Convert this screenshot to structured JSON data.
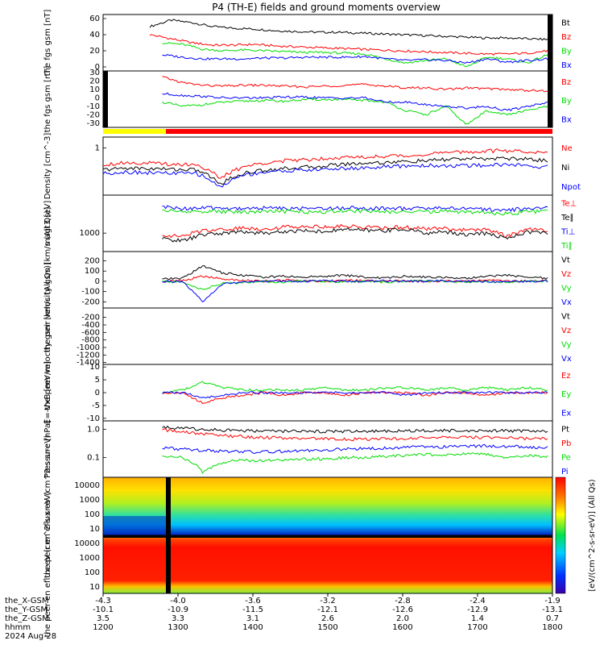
{
  "title": "P4 (TH-E) fields and ground moments overview",
  "colors": {
    "black": "#000000",
    "red": "#ff0000",
    "green": "#00dd00",
    "blue": "#0000ff",
    "yellow": "#ffff00"
  },
  "footer": {
    "rows": [
      {
        "label": "the_X-GSM",
        "values": [
          "-4.3",
          "-4.0",
          "-3.6",
          "-3.2",
          "-2.8",
          "-2.4",
          "-1.9"
        ]
      },
      {
        "label": "the_Y-GSM",
        "values": [
          "-10.1",
          "-10.9",
          "-11.5",
          "-12.1",
          "-12.6",
          "-12.9",
          "-13.1"
        ]
      },
      {
        "label": "the_Z-GSM",
        "values": [
          "3.5",
          "3.3",
          "3.1",
          "2.6",
          "2.0",
          "1.4",
          "0.7"
        ]
      },
      {
        "label": "hhmm",
        "values": [
          "1200",
          "1300",
          "1400",
          "1500",
          "1600",
          "1700",
          "1800"
        ]
      }
    ],
    "date": "2024 Aug 28"
  },
  "colorbar": {
    "label": "[eV/(cm^2-s-sr-eV)] (All Qs)",
    "ticks": [
      "10^8",
      "10^6",
      "10^4",
      "10^2",
      "10^8",
      "10^6",
      "10^4",
      "10^2"
    ]
  },
  "chart_data": [
    {
      "id": "fgs1",
      "type": "line",
      "ylabel": "the fgs gsm [nT]",
      "ylim": [
        -5,
        65
      ],
      "yticks": [
        "60",
        "40",
        "20",
        "0"
      ],
      "series": [
        {
          "name": "Bt",
          "color": "black",
          "data_start": 0.83,
          "values": [
            50,
            58,
            55,
            50,
            48,
            47,
            45,
            44,
            43,
            43,
            42,
            41,
            40,
            39,
            38,
            37,
            36,
            36,
            35,
            34
          ]
        },
        {
          "name": "Bz",
          "color": "red",
          "data_start": 0.83,
          "values": [
            40,
            35,
            30,
            27,
            27,
            28,
            26,
            25,
            24,
            23,
            22,
            21,
            20,
            19,
            18,
            17,
            16,
            16,
            17,
            20
          ]
        },
        {
          "name": "By",
          "color": "green",
          "data_start": 1.05,
          "values": [
            30,
            28,
            22,
            20,
            21,
            20,
            19,
            18,
            18,
            17,
            16,
            10,
            5,
            8,
            10,
            0,
            12,
            10,
            5,
            15
          ]
        },
        {
          "name": "Bx",
          "color": "blue",
          "data_start": 1.05,
          "values": [
            15,
            12,
            10,
            10,
            10,
            11,
            11,
            12,
            12,
            12,
            13,
            10,
            8,
            9,
            8,
            5,
            10,
            6,
            8,
            10
          ]
        }
      ]
    },
    {
      "id": "fgs2",
      "type": "line",
      "ylabel": "the fgs gsm [nT]",
      "ylim": [
        -35,
        32
      ],
      "yticks": [
        "30",
        "20",
        "10",
        "0",
        "-10",
        "-20",
        "-30"
      ],
      "series": [
        {
          "name": "Bz",
          "color": "red",
          "data_start": 1.05,
          "values": [
            25,
            18,
            15,
            14,
            15,
            15,
            14,
            13,
            14,
            15,
            16,
            14,
            12,
            12,
            10,
            12,
            11,
            10,
            9,
            8
          ]
        },
        {
          "name": "By",
          "color": "green",
          "data_start": 1.05,
          "values": [
            -5,
            -10,
            -8,
            -5,
            -4,
            -3,
            -4,
            -2,
            -2,
            -2,
            -3,
            -5,
            -15,
            -20,
            -10,
            -32,
            -15,
            -20,
            -15,
            -10
          ]
        },
        {
          "name": "Bx",
          "color": "blue",
          "data_start": 1.05,
          "values": [
            5,
            3,
            2,
            0,
            0,
            0,
            1,
            1,
            0,
            0,
            0,
            -5,
            -5,
            -8,
            -10,
            -12,
            -10,
            -15,
            -10,
            -5
          ]
        }
      ]
    },
    {
      "id": "density",
      "type": "line",
      "ylabel": "Density [cm^-3]",
      "ylim": [
        0.05,
        2
      ],
      "yticks": [
        "1"
      ],
      "series": [
        {
          "name": "Ne",
          "color": "red",
          "data_start": 0.0,
          "values": [
            0.35,
            0.4,
            0.38,
            0.36,
            0.35,
            0.14,
            0.3,
            0.4,
            0.45,
            0.5,
            0.55,
            0.55,
            0.6,
            0.6,
            0.7,
            0.75,
            0.8,
            0.85,
            0.8,
            0.75
          ]
        },
        {
          "name": "Ni",
          "color": "black",
          "data_start": 0.0,
          "values": [
            0.25,
            0.28,
            0.27,
            0.26,
            0.25,
            0.1,
            0.2,
            0.25,
            0.28,
            0.3,
            0.35,
            0.38,
            0.4,
            0.42,
            0.45,
            0.5,
            0.5,
            0.52,
            0.5,
            0.45
          ]
        },
        {
          "name": "Npot",
          "color": "blue",
          "data_start": 0.0,
          "values": [
            0.2,
            0.22,
            0.21,
            0.2,
            0.2,
            0.08,
            0.18,
            0.22,
            0.24,
            0.25,
            0.27,
            0.28,
            0.3,
            0.32,
            0.33,
            0.32,
            0.33,
            0.35,
            0.33,
            0.3
          ]
        }
      ]
    },
    {
      "id": "temp",
      "type": "line",
      "ylabel": "magt3 [eV]",
      "ylim": [
        300,
        12000
      ],
      "yticks": [
        "1000"
      ],
      "series": [
        {
          "name": "Te⊥",
          "color": "red",
          "data_start": 1.05,
          "values": [
            900,
            800,
            1200,
            1300,
            1400,
            1300,
            1500,
            1600,
            1500,
            1600,
            1500,
            1400,
            1500,
            1300,
            1400,
            1200,
            1300,
            800,
            1300,
            1200
          ]
        },
        {
          "name": "Te∥",
          "color": "black",
          "data_start": 1.05,
          "values": [
            700,
            600,
            900,
            1000,
            1100,
            1000,
            1100,
            1200,
            1100,
            1300,
            1200,
            1200,
            1300,
            1000,
            1100,
            900,
            1000,
            700,
            1100,
            1000
          ]
        },
        {
          "name": "Ti⊥",
          "color": "blue",
          "data_start": 1.05,
          "values": [
            5500,
            5000,
            5200,
            5100,
            5000,
            5200,
            5100,
            5000,
            5100,
            5300,
            5200,
            5100,
            5000,
            5100,
            5200,
            5000,
            4800,
            4500,
            5000,
            5200
          ]
        },
        {
          "name": "Ti∥",
          "color": "green",
          "data_start": 1.05,
          "values": [
            4500,
            4000,
            4200,
            4100,
            4000,
            4200,
            4100,
            4000,
            4100,
            4300,
            4200,
            4100,
            4000,
            4100,
            4200,
            4000,
            3800,
            3600,
            4000,
            4200
          ]
        }
      ]
    },
    {
      "id": "pvel",
      "type": "line",
      "ylabel": "the peir velocity gsm [km/s (All Qs)]",
      "ylim": [
        -260,
        290
      ],
      "yticks": [
        "200",
        "100",
        "0",
        "-100",
        "-200"
      ],
      "series": [
        {
          "name": "Vt",
          "color": "black",
          "data_start": 1.05,
          "values": [
            20,
            30,
            150,
            80,
            60,
            40,
            50,
            40,
            50,
            60,
            40,
            30,
            50,
            40,
            40,
            30,
            50,
            60,
            40,
            30
          ]
        },
        {
          "name": "Vz",
          "color": "red",
          "data_start": 1.05,
          "values": [
            0,
            5,
            50,
            20,
            10,
            0,
            10,
            5,
            0,
            10,
            5,
            0,
            5,
            0,
            5,
            0,
            10,
            5,
            0,
            5
          ]
        },
        {
          "name": "Vy",
          "color": "green",
          "data_start": 1.05,
          "values": [
            0,
            -10,
            -80,
            -20,
            -10,
            0,
            -10,
            5,
            0,
            -5,
            0,
            -10,
            0,
            5,
            0,
            -5,
            0,
            -10,
            0,
            5
          ]
        },
        {
          "name": "Vx",
          "color": "blue",
          "data_start": 1.05,
          "values": [
            0,
            -5,
            -200,
            -20,
            -10,
            0,
            5,
            0,
            5,
            0,
            0,
            5,
            0,
            0,
            5,
            0,
            -5,
            0,
            0,
            0
          ]
        }
      ]
    },
    {
      "id": "evel",
      "type": "line",
      "ylabel": "the peer velocity gsm [km/s (All Qs)]",
      "ylim": [
        -1450,
        50
      ],
      "yticks": [
        "-200",
        "-400",
        "-600",
        "-800",
        "-1000",
        "-1200",
        "-1400"
      ],
      "series": [
        {
          "name": "Vt",
          "color": "black",
          "values": []
        },
        {
          "name": "Vz",
          "color": "red",
          "values": []
        },
        {
          "name": "Vy",
          "color": "green",
          "values": []
        },
        {
          "name": "Vx",
          "color": "blue",
          "values": []
        }
      ]
    },
    {
      "id": "efield",
      "type": "line",
      "ylabel": "E=-VxB [mV/m]",
      "ylim": [
        -11,
        11
      ],
      "yticks": [
        "10",
        "5",
        "0",
        "-5",
        "-10"
      ],
      "series": [
        {
          "name": "Ez",
          "color": "red",
          "data_start": 1.05,
          "values": [
            0,
            0,
            -4,
            -2,
            -1,
            0,
            -1,
            0,
            0,
            -1,
            0,
            0,
            0,
            -1,
            0,
            0,
            -1,
            0,
            0,
            0
          ]
        },
        {
          "name": "Ey",
          "color": "green",
          "data_start": 1.05,
          "values": [
            0,
            1,
            4,
            2,
            1,
            1,
            1,
            1,
            2,
            1,
            1,
            2,
            2,
            1,
            2,
            1,
            2,
            1,
            2,
            1
          ]
        },
        {
          "name": "Ex",
          "color": "blue",
          "data_start": 1.05,
          "values": [
            0,
            0,
            -2,
            -1,
            0,
            0,
            0,
            0,
            0,
            0,
            0,
            0,
            -1,
            0,
            0,
            0,
            0,
            0,
            0,
            0
          ]
        }
      ]
    },
    {
      "id": "pressure",
      "type": "line",
      "ylabel": "Pressure [nPa]",
      "ylim": [
        0.02,
        2
      ],
      "yticks": [
        "1.0",
        "0.1"
      ],
      "series": [
        {
          "name": "Pt",
          "color": "black",
          "data_start": 1.05,
          "values": [
            1.2,
            1.1,
            1.0,
            0.95,
            0.9,
            0.88,
            0.86,
            0.85,
            0.85,
            0.85,
            0.84,
            0.86,
            0.88,
            0.9,
            0.9,
            0.92,
            0.9,
            0.88,
            0.86,
            0.85
          ]
        },
        {
          "name": "Pb",
          "color": "red",
          "data_start": 1.05,
          "values": [
            0.95,
            0.8,
            0.7,
            0.6,
            0.55,
            0.52,
            0.5,
            0.48,
            0.46,
            0.45,
            0.45,
            0.46,
            0.47,
            0.5,
            0.52,
            0.55,
            0.52,
            0.5,
            0.48,
            0.47
          ]
        },
        {
          "name": "Pe",
          "color": "green",
          "data_start": 1.05,
          "values": [
            0.12,
            0.1,
            0.03,
            0.07,
            0.08,
            0.08,
            0.08,
            0.09,
            0.09,
            0.1,
            0.1,
            0.11,
            0.12,
            0.13,
            0.12,
            0.14,
            0.13,
            0.1,
            0.12,
            0.11
          ]
        },
        {
          "name": "Pi",
          "color": "blue",
          "data_start": 1.05,
          "values": [
            0.22,
            0.2,
            0.18,
            0.17,
            0.16,
            0.16,
            0.17,
            0.18,
            0.19,
            0.2,
            0.21,
            0.22,
            0.23,
            0.24,
            0.24,
            0.25,
            0.26,
            0.25,
            0.24,
            0.23
          ]
        }
      ]
    },
    {
      "id": "eflux_i",
      "type": "heatmap",
      "ylabel": "the peir en eflux eV (cm^2-s-sr-eV)",
      "yticks": [
        "10000",
        "1000",
        "100",
        "10"
      ]
    },
    {
      "id": "eflux_e",
      "type": "heatmap",
      "ylabel": "the peer en eflux eV (cm^2-s-sr-eV)",
      "yticks": [
        "10000",
        "1000",
        "100",
        "10"
      ]
    }
  ]
}
